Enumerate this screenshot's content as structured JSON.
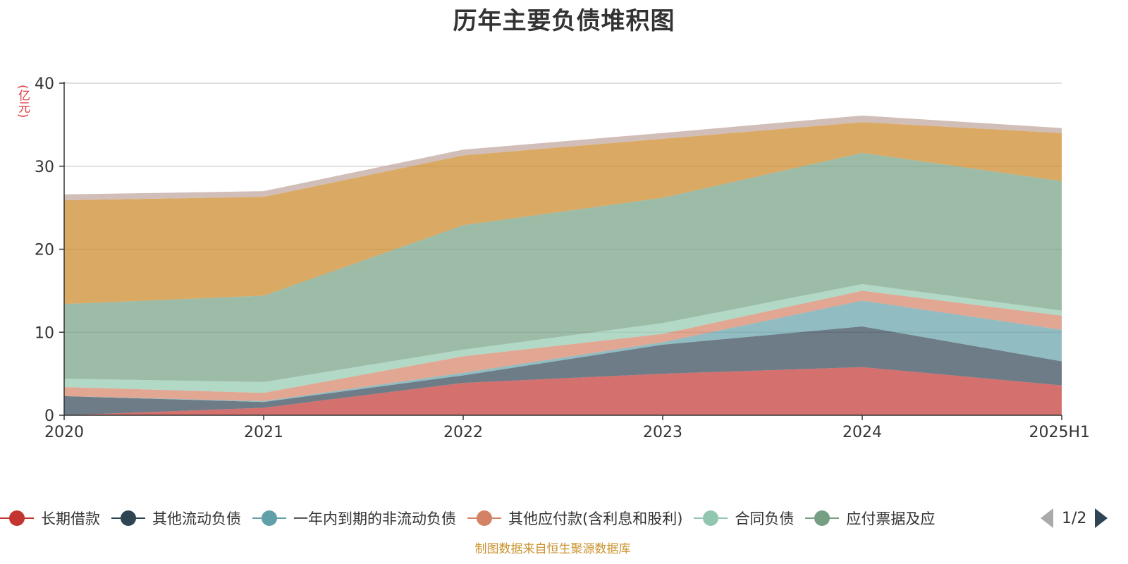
{
  "title": "历年主要负债堆积图",
  "unit_label": "(亿元)",
  "source_note": "制图数据来自恒生聚源数据库",
  "pager": {
    "text": "1/2"
  },
  "legend": [
    {
      "label": "长期借款",
      "color": "#c23531"
    },
    {
      "label": "其他流动负债",
      "color": "#2f4554"
    },
    {
      "label": "一年内到期的非流动负债",
      "color": "#61a0a8"
    },
    {
      "label": "其他应付款(含利息和股利)",
      "color": "#d48265"
    },
    {
      "label": "合同负债",
      "color": "#91c7ae"
    },
    {
      "label": "应付票据及应",
      "color": "#749f83"
    }
  ],
  "chart_data": {
    "type": "area",
    "title": "历年主要负债堆积图",
    "ylabel": "(亿元)",
    "stacked": true,
    "x": [
      "2020",
      "2021",
      "2022",
      "2023",
      "2024",
      "2025H1"
    ],
    "ylim": [
      0,
      40
    ],
    "yticks": [
      0,
      10,
      20,
      30,
      40
    ],
    "grid": true,
    "legend_position": "bottom",
    "series": [
      {
        "name": "长期借款",
        "color": "#c23531",
        "values": [
          0.0,
          0.9,
          3.9,
          5.0,
          5.8,
          3.6
        ]
      },
      {
        "name": "其他流动负债",
        "color": "#2f4554",
        "values": [
          2.3,
          0.7,
          0.9,
          3.5,
          4.9,
          2.9
        ]
      },
      {
        "name": "一年内到期的非流动负债",
        "color": "#61a0a8",
        "values": [
          0.0,
          0.1,
          0.3,
          0.3,
          3.1,
          3.8
        ]
      },
      {
        "name": "其他应付款(含利息和股利)",
        "color": "#d48265",
        "values": [
          1.1,
          1.0,
          2.0,
          1.0,
          1.2,
          1.7
        ]
      },
      {
        "name": "合同负债",
        "color": "#91c7ae",
        "values": [
          1.0,
          1.3,
          0.8,
          1.3,
          0.8,
          0.6
        ]
      },
      {
        "name": "应付票据及应",
        "color": "#749f83",
        "values": [
          9.0,
          10.4,
          15.0,
          15.1,
          15.8,
          15.6
        ]
      },
      {
        "color": "#ca8622",
        "values": [
          12.5,
          11.9,
          8.4,
          7.1,
          3.7,
          5.8
        ]
      },
      {
        "color": "#bda29a",
        "values": [
          0.7,
          0.7,
          0.7,
          0.7,
          0.8,
          0.6
        ]
      }
    ]
  }
}
